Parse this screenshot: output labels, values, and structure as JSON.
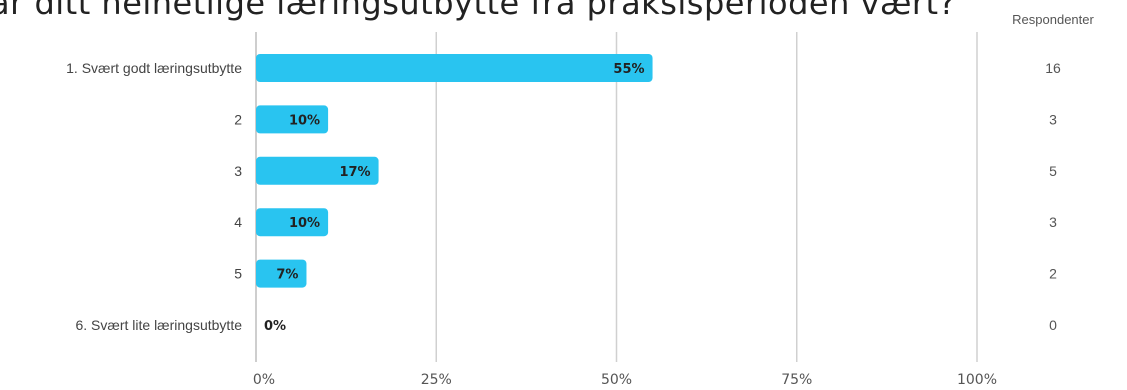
{
  "chart_data": {
    "type": "bar",
    "orientation": "horizontal",
    "title": "ar ditt helhetlige læringsutbytte fra praksisperioden vært?",
    "categories": [
      "1. Svært godt læringsutbytte",
      "2",
      "3",
      "4",
      "5",
      "6. Svært lite læringsutbytte"
    ],
    "values": [
      55,
      10,
      17,
      10,
      7,
      0
    ],
    "value_labels": [
      "55%",
      "10%",
      "17%",
      "10%",
      "7%",
      "0%"
    ],
    "respondents_header": "Respondenter",
    "respondents": [
      "16",
      "3",
      "5",
      "3",
      "2",
      "0"
    ],
    "x_ticks": [
      0,
      25,
      50,
      75,
      100
    ],
    "x_tick_labels": [
      "0%",
      "25%",
      "50%",
      "75%",
      "100%"
    ],
    "xlim": [
      0,
      100
    ],
    "grid": true,
    "bar_color": "#29C4F0"
  }
}
